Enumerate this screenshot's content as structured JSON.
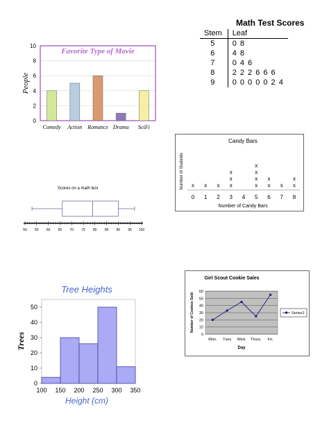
{
  "chart_data": [
    {
      "type": "bar",
      "title": "Favorite Type of Movie",
      "ylabel": "People",
      "xlabel": "",
      "categories": [
        "Comedy",
        "Action",
        "Romance",
        "Drama",
        "SciFi"
      ],
      "values": [
        4,
        5,
        6,
        1,
        4
      ],
      "ylim": [
        0,
        10
      ],
      "yticks": [
        0,
        2,
        4,
        6,
        8,
        10
      ],
      "colors": [
        "#d4e89a",
        "#b8cde4",
        "#d99a6c",
        "#8e7bb5",
        "#f4f0a0"
      ],
      "frame_color": "#b36cc9",
      "title_color": "#b36cc9",
      "grid": true
    },
    {
      "type": "table",
      "title": "Math Test Scores",
      "columns": [
        "Stem",
        "Leaf"
      ],
      "rows": [
        [
          "5",
          "0 8"
        ],
        [
          "6",
          "4 8"
        ],
        [
          "7",
          "0 4 6"
        ],
        [
          "8",
          "2 2 2 6 6 6"
        ],
        [
          "9",
          "0 0 0 0 0 2 4"
        ]
      ]
    },
    {
      "type": "scatter",
      "subtype": "dot plot",
      "title": "Candy Bars",
      "xlabel": "Number of Candy Bars",
      "ylabel": "Number of Students",
      "x": [
        0,
        1,
        2,
        3,
        4,
        5,
        6,
        7,
        8
      ],
      "counts": [
        1,
        1,
        1,
        3,
        0,
        4,
        2,
        1,
        2
      ],
      "marker": "x"
    },
    {
      "type": "box",
      "title": "Scores on a math test",
      "axis_ticks": [
        50,
        55,
        60,
        65,
        70,
        75,
        80,
        85,
        90,
        95,
        100
      ],
      "min": 53,
      "q1": 66,
      "median": 79,
      "q3": 90,
      "max": 97
    },
    {
      "type": "bar",
      "subtype": "histogram",
      "title": "Tree Heights",
      "xlabel": "Height (cm)",
      "ylabel": "Trees",
      "bin_edges": [
        100,
        150,
        200,
        250,
        300,
        350
      ],
      "values": [
        4,
        30,
        26,
        50,
        11
      ],
      "ylim": [
        0,
        55
      ],
      "yticks": [
        0,
        10,
        20,
        30,
        40,
        50
      ],
      "bar_color": "#aaaaf5",
      "title_color": "#4466cc"
    },
    {
      "type": "line",
      "title": "Girl Scout Cookie Sales",
      "xlabel": "Day",
      "ylabel": "Number of Cookies Sold",
      "categories": [
        "Mon.",
        "Tues",
        "Wed.",
        "Thurs.",
        "Fri."
      ],
      "series": [
        {
          "name": "Series1",
          "values": [
            20,
            33,
            45,
            25,
            55
          ]
        }
      ],
      "ylim": [
        0,
        60
      ],
      "yticks": [
        0,
        10,
        20,
        30,
        40,
        50,
        60
      ],
      "line_color": "#1a1a80",
      "plot_bg": "#c0c0c0"
    }
  ]
}
